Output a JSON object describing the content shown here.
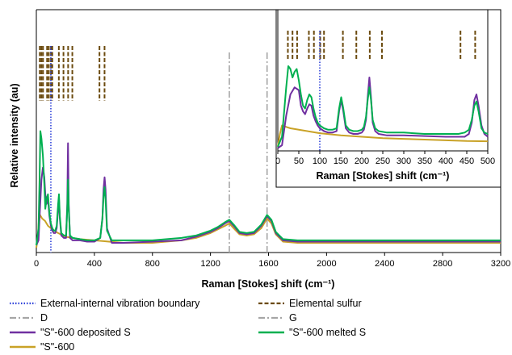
{
  "chart_data": [
    {
      "type": "line",
      "panel": "main",
      "xlabel": "Raman [Stokes] shift (cm⁻¹)",
      "ylabel": "Relative intensity (au)",
      "xlim": [
        0,
        3200
      ],
      "ylim": [
        0,
        1
      ],
      "x_ticks": [
        "0",
        "400",
        "800",
        "1200",
        "1600",
        "2000",
        "2400",
        "2800",
        "3200"
      ],
      "y_ticks_shown": false,
      "grid": false,
      "vertical_lines": {
        "boundary": 100,
        "D": 1330,
        "G": 1590,
        "elemental_sulfur": [
          24,
          35,
          46,
          74,
          86,
          101,
          110,
          155,
          187,
          219,
          248,
          435,
          470
        ]
      },
      "series": [
        {
          "name": "\"S\"-600 deposited S",
          "color": "#7030a0",
          "x": [
            0,
            15,
            25,
            35,
            45,
            55,
            62,
            70,
            80,
            90,
            100,
            110,
            120,
            130,
            140,
            150,
            156,
            162,
            172,
            190,
            205,
            213,
            218,
            223,
            232,
            250,
            300,
            350,
            400,
            440,
            455,
            463,
            470,
            477,
            487,
            520,
            600,
            800,
            1000,
            1100,
            1200,
            1250,
            1300,
            1330,
            1360,
            1400,
            1450,
            1500,
            1550,
            1590,
            1620,
            1650,
            1700,
            1800,
            2000,
            2400,
            2800,
            3200
          ],
          "y": [
            0.03,
            0.05,
            0.18,
            0.3,
            0.35,
            0.31,
            0.24,
            0.2,
            0.22,
            0.15,
            0.11,
            0.09,
            0.08,
            0.08,
            0.1,
            0.18,
            0.22,
            0.14,
            0.07,
            0.06,
            0.06,
            0.2,
            0.45,
            0.2,
            0.06,
            0.05,
            0.05,
            0.045,
            0.045,
            0.06,
            0.14,
            0.26,
            0.31,
            0.26,
            0.1,
            0.04,
            0.04,
            0.045,
            0.05,
            0.065,
            0.085,
            0.1,
            0.12,
            0.13,
            0.11,
            0.08,
            0.075,
            0.08,
            0.11,
            0.15,
            0.13,
            0.08,
            0.05,
            0.045,
            0.045,
            0.045,
            0.045,
            0.045
          ]
        },
        {
          "name": "\"S\"-600 melted S",
          "color": "#00b050",
          "x": [
            0,
            15,
            22,
            28,
            35,
            45,
            55,
            62,
            70,
            80,
            90,
            100,
            110,
            120,
            130,
            140,
            150,
            156,
            162,
            172,
            190,
            205,
            213,
            218,
            223,
            232,
            250,
            300,
            350,
            400,
            440,
            455,
            463,
            470,
            477,
            487,
            520,
            600,
            800,
            1000,
            1100,
            1200,
            1250,
            1300,
            1330,
            1360,
            1400,
            1450,
            1500,
            1550,
            1590,
            1620,
            1650,
            1700,
            1800,
            2000,
            2400,
            2800,
            3200
          ],
          "y": [
            0.03,
            0.1,
            0.3,
            0.5,
            0.47,
            0.4,
            0.28,
            0.18,
            0.22,
            0.24,
            0.16,
            0.12,
            0.1,
            0.09,
            0.09,
            0.11,
            0.2,
            0.24,
            0.15,
            0.08,
            0.07,
            0.07,
            0.18,
            0.3,
            0.18,
            0.07,
            0.06,
            0.055,
            0.05,
            0.05,
            0.06,
            0.14,
            0.23,
            0.27,
            0.22,
            0.09,
            0.05,
            0.05,
            0.05,
            0.06,
            0.07,
            0.09,
            0.105,
            0.125,
            0.135,
            0.115,
            0.085,
            0.08,
            0.085,
            0.115,
            0.155,
            0.135,
            0.085,
            0.055,
            0.05,
            0.05,
            0.05,
            0.05,
            0.05
          ]
        },
        {
          "name": "\"S\"-600",
          "color": "#c9a227",
          "x": [
            0,
            10,
            20,
            30,
            40,
            60,
            80,
            100,
            150,
            200,
            300,
            400,
            500,
            600,
            800,
            1000,
            1100,
            1200,
            1250,
            1300,
            1330,
            1360,
            1400,
            1450,
            1500,
            1550,
            1590,
            1620,
            1650,
            1700,
            1800,
            2000,
            2400,
            2800,
            3200
          ],
          "y": [
            0.02,
            0.06,
            0.16,
            0.15,
            0.14,
            0.13,
            0.11,
            0.1,
            0.08,
            0.065,
            0.055,
            0.05,
            0.045,
            0.04,
            0.04,
            0.05,
            0.06,
            0.08,
            0.095,
            0.11,
            0.12,
            0.1,
            0.075,
            0.07,
            0.075,
            0.1,
            0.14,
            0.12,
            0.075,
            0.045,
            0.04,
            0.04,
            0.04,
            0.04,
            0.04
          ]
        }
      ]
    },
    {
      "type": "line",
      "panel": "inset",
      "xlabel": "Raman [Stokes] shift (cm⁻¹)",
      "xlim": [
        0,
        500
      ],
      "ylim": [
        0,
        1
      ],
      "x_ticks": [
        "0",
        "50",
        "100",
        "150",
        "200",
        "250",
        "300",
        "350",
        "400",
        "450",
        "500"
      ],
      "y_ticks_shown": false,
      "grid": false,
      "vertical_lines": {
        "boundary": 100,
        "elemental_sulfur": [
          24,
          35,
          46,
          74,
          86,
          101,
          110,
          155,
          187,
          219,
          248,
          435,
          470
        ]
      },
      "series": [
        {
          "name": "\"S\"-600 deposited S",
          "color": "#7030a0",
          "x": [
            0,
            10,
            20,
            30,
            40,
            45,
            50,
            55,
            60,
            65,
            70,
            75,
            80,
            85,
            90,
            95,
            100,
            110,
            120,
            130,
            140,
            146,
            151,
            156,
            162,
            170,
            180,
            190,
            200,
            205,
            210,
            214,
            218,
            222,
            226,
            232,
            240,
            260,
            300,
            350,
            400,
            430,
            445,
            455,
            462,
            468,
            473,
            478,
            485,
            492,
            500
          ],
          "y": [
            0.02,
            0.04,
            0.25,
            0.4,
            0.45,
            0.44,
            0.43,
            0.32,
            0.28,
            0.26,
            0.3,
            0.33,
            0.32,
            0.25,
            0.21,
            0.18,
            0.16,
            0.14,
            0.13,
            0.13,
            0.14,
            0.28,
            0.36,
            0.28,
            0.16,
            0.13,
            0.12,
            0.12,
            0.13,
            0.15,
            0.22,
            0.38,
            0.52,
            0.38,
            0.2,
            0.14,
            0.12,
            0.11,
            0.11,
            0.105,
            0.1,
            0.1,
            0.1,
            0.12,
            0.2,
            0.36,
            0.4,
            0.32,
            0.18,
            0.12,
            0.1
          ]
        },
        {
          "name": "\"S\"-600 melted S",
          "color": "#00b050",
          "x": [
            0,
            10,
            20,
            25,
            30,
            35,
            40,
            45,
            50,
            55,
            60,
            65,
            70,
            75,
            80,
            85,
            90,
            95,
            100,
            110,
            120,
            130,
            140,
            146,
            151,
            156,
            162,
            170,
            180,
            190,
            200,
            205,
            210,
            214,
            218,
            222,
            226,
            232,
            240,
            260,
            300,
            350,
            400,
            430,
            445,
            455,
            462,
            468,
            473,
            478,
            485,
            492,
            500
          ],
          "y": [
            0.03,
            0.1,
            0.45,
            0.6,
            0.58,
            0.52,
            0.56,
            0.58,
            0.5,
            0.4,
            0.32,
            0.3,
            0.36,
            0.4,
            0.38,
            0.3,
            0.24,
            0.2,
            0.18,
            0.16,
            0.15,
            0.15,
            0.16,
            0.3,
            0.38,
            0.3,
            0.18,
            0.15,
            0.14,
            0.14,
            0.15,
            0.17,
            0.24,
            0.36,
            0.45,
            0.36,
            0.22,
            0.16,
            0.14,
            0.13,
            0.13,
            0.12,
            0.12,
            0.12,
            0.13,
            0.15,
            0.22,
            0.32,
            0.35,
            0.28,
            0.16,
            0.13,
            0.12
          ]
        },
        {
          "name": "\"S\"-600",
          "color": "#c9a227",
          "x": [
            0,
            5,
            10,
            20,
            30,
            40,
            60,
            80,
            100,
            150,
            200,
            250,
            300,
            350,
            400,
            450,
            500
          ],
          "y": [
            0.03,
            0.12,
            0.18,
            0.17,
            0.16,
            0.155,
            0.145,
            0.135,
            0.125,
            0.11,
            0.1,
            0.09,
            0.085,
            0.08,
            0.075,
            0.07,
            0.068
          ]
        }
      ]
    }
  ],
  "legend": [
    {
      "label": "External-internal vibration boundary",
      "style": "dotted",
      "color": "#2b3fd8"
    },
    {
      "label": "Elemental sulfur",
      "style": "dashed",
      "color": "#6b4a0e"
    },
    {
      "label": "D",
      "style": "dashdot",
      "color": "#a6a6a6"
    },
    {
      "label": "G",
      "style": "dashdot",
      "color": "#a6a6a6"
    },
    {
      "label": "\"S\"-600 deposited S",
      "style": "solid",
      "color": "#7030a0"
    },
    {
      "label": "\"S\"-600 melted S",
      "style": "solid",
      "color": "#00b050"
    },
    {
      "label": "\"S\"-600",
      "style": "solid",
      "color": "#c9a227"
    }
  ]
}
